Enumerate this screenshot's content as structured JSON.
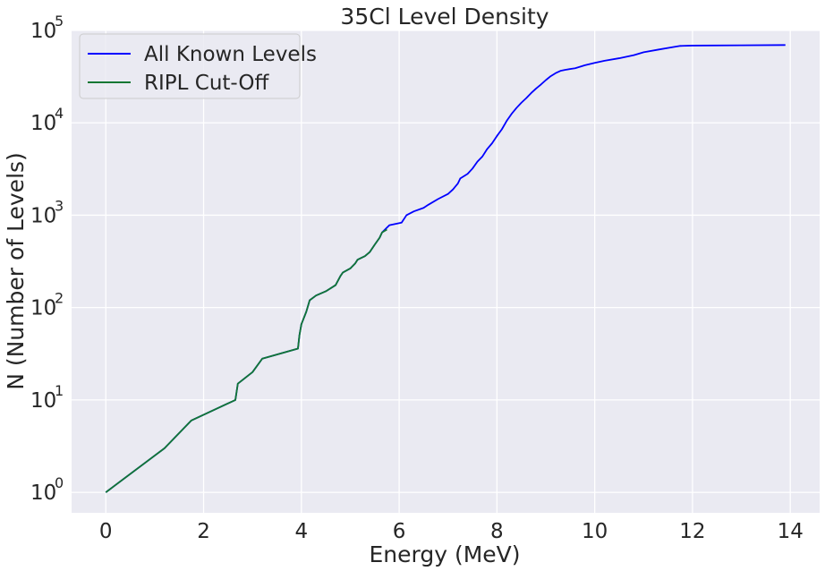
{
  "chart_data": {
    "type": "line",
    "title": "35Cl Level Density",
    "xlabel": "Energy (MeV)",
    "ylabel": "N (Number of Levels)",
    "xlim": [
      -0.7,
      14.6
    ],
    "ylim": [
      0.6,
      100000
    ],
    "yscale": "log",
    "grid": true,
    "legend_position": "top-left",
    "x_ticks": [
      0,
      2,
      4,
      6,
      8,
      10,
      12,
      14
    ],
    "x_tick_labels": [
      "0",
      "2",
      "4",
      "6",
      "8",
      "10",
      "12",
      "14"
    ],
    "y_ticks": [
      1,
      10,
      100,
      1000,
      10000,
      100000
    ],
    "y_tick_labels": [
      {
        "base": "10",
        "exp": "0"
      },
      {
        "base": "10",
        "exp": "1"
      },
      {
        "base": "10",
        "exp": "2"
      },
      {
        "base": "10",
        "exp": "3"
      },
      {
        "base": "10",
        "exp": "4"
      },
      {
        "base": "10",
        "exp": "5"
      }
    ],
    "colors": {
      "background": "#eaeaf2",
      "grid": "#ffffff",
      "text": "#262626"
    },
    "series": [
      {
        "name": "All Known Levels",
        "color": "#0000ff",
        "x": [
          0,
          1.2,
          1.75,
          2.65,
          2.7,
          3.0,
          3.2,
          3.93,
          3.96,
          4.0,
          4.1,
          4.17,
          4.3,
          4.5,
          4.7,
          4.8,
          4.85,
          5.0,
          5.1,
          5.15,
          5.2,
          5.3,
          5.4,
          5.5,
          5.6,
          5.65,
          5.8,
          6.05,
          6.15,
          6.3,
          6.5,
          6.6,
          6.8,
          7.0,
          7.1,
          7.2,
          7.25,
          7.4,
          7.5,
          7.6,
          7.7,
          7.8,
          7.9,
          8.0,
          8.1,
          8.2,
          8.3,
          8.4,
          8.5,
          8.6,
          8.7,
          8.8,
          8.9,
          9.0,
          9.1,
          9.2,
          9.3,
          9.4,
          9.6,
          9.8,
          10.0,
          10.2,
          10.5,
          10.8,
          11.0,
          11.3,
          11.6,
          11.75,
          12.0,
          13.0,
          13.9
        ],
        "y": [
          1,
          3,
          6,
          10,
          15,
          20,
          28,
          36,
          50,
          66,
          90,
          120,
          135,
          150,
          175,
          220,
          240,
          265,
          300,
          330,
          340,
          360,
          400,
          480,
          570,
          650,
          780,
          830,
          1000,
          1100,
          1200,
          1300,
          1500,
          1700,
          1900,
          2200,
          2500,
          2800,
          3200,
          3800,
          4300,
          5200,
          6000,
          7200,
          8500,
          10500,
          12500,
          14500,
          16500,
          18500,
          21000,
          23500,
          26000,
          29000,
          32000,
          34500,
          36500,
          37500,
          39000,
          42000,
          44500,
          47000,
          50000,
          54000,
          58000,
          62000,
          66000,
          68000,
          68500,
          69000,
          69500
        ]
      },
      {
        "name": "RIPL Cut-Off",
        "color": "#117733",
        "x": [
          0,
          1.2,
          1.75,
          2.65,
          2.7,
          3.0,
          3.2,
          3.93,
          3.96,
          4.0,
          4.1,
          4.17,
          4.3,
          4.5,
          4.7,
          4.8,
          4.85,
          5.0,
          5.1,
          5.15,
          5.2,
          5.3,
          5.4,
          5.5,
          5.6,
          5.65,
          5.75
        ],
        "y": [
          1,
          3,
          6,
          10,
          15,
          20,
          28,
          36,
          50,
          66,
          90,
          120,
          135,
          150,
          175,
          220,
          240,
          265,
          300,
          330,
          340,
          360,
          400,
          480,
          570,
          650,
          700
        ]
      }
    ]
  }
}
